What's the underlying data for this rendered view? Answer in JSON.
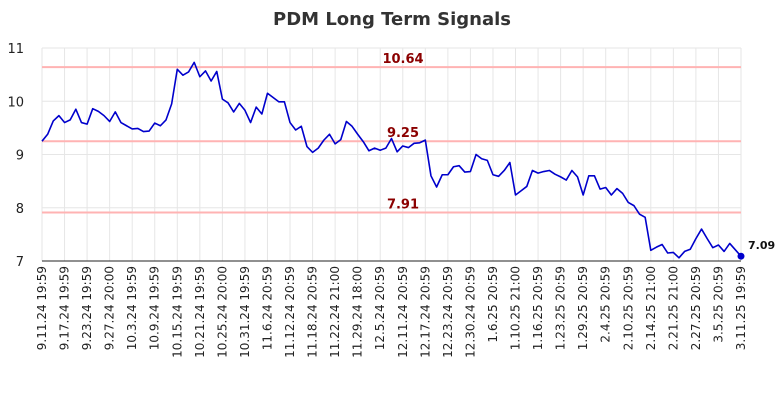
{
  "chart_data": {
    "type": "line",
    "title": "PDM Long Term Signals",
    "xlabel": "",
    "ylabel": "",
    "ylim": [
      7,
      11
    ],
    "yticks": [
      "7",
      "8",
      "9",
      "10",
      "11"
    ],
    "x_tick_labels": [
      "9.11.24 19:59",
      "9.17.24 19:59",
      "9.23.24 19:59",
      "9.27.24 20:00",
      "10.3.24 19:59",
      "10.9.24 19:59",
      "10.15.24 19:59",
      "10.21.24 19:59",
      "10.25.24 20:00",
      "10.31.24 19:59",
      "11.6.24 20:59",
      "11.12.24 20:59",
      "11.18.24 20:59",
      "11.22.24 21:00",
      "11.29.24 18:00",
      "12.5.24 20:59",
      "12.11.24 20:59",
      "12.17.24 20:59",
      "12.23.24 20:59",
      "12.30.24 20:59",
      "1.6.25 20:59",
      "1.10.25 21:00",
      "1.16.25 20:59",
      "1.23.25 20:59",
      "1.29.25 20:59",
      "2.4.25 20:59",
      "2.10.25 20:59",
      "2.14.25 21:00",
      "2.21.25 21:00",
      "2.27.25 20:59",
      "3.5.25 20:59",
      "3.11.25 19:59"
    ],
    "grid": true,
    "colors": {
      "line": "#0000cc",
      "reference": "#ffb3b3",
      "reference_label": "#8b0000"
    },
    "reference_lines": [
      {
        "value": 10.64,
        "label": "10.64"
      },
      {
        "value": 9.25,
        "label": "9.25"
      },
      {
        "value": 7.91,
        "label": "7.91"
      }
    ],
    "last_value": "7.09",
    "series": [
      {
        "values": [
          9.25,
          9.38,
          9.63,
          9.73,
          9.6,
          9.65,
          9.85,
          9.6,
          9.57,
          9.86,
          9.81,
          9.73,
          9.62,
          9.8,
          9.6,
          9.54,
          9.48,
          9.49,
          9.43,
          9.44,
          9.59,
          9.54,
          9.65,
          9.95,
          10.6,
          10.49,
          10.55,
          10.73,
          10.46,
          10.57,
          10.38,
          10.56,
          10.04,
          9.97,
          9.8,
          9.96,
          9.83,
          9.6,
          9.89,
          9.76,
          10.15,
          10.07,
          9.99,
          9.99,
          9.6,
          9.46,
          9.53,
          9.15,
          9.04,
          9.12,
          9.27,
          9.38,
          9.2,
          9.28,
          9.62,
          9.53,
          9.38,
          9.24,
          9.07,
          9.12,
          9.08,
          9.12,
          9.3,
          9.05,
          9.16,
          9.13,
          9.21,
          9.22,
          9.27,
          8.6,
          8.39,
          8.62,
          8.62,
          8.77,
          8.79,
          8.67,
          8.68,
          9.0,
          8.92,
          8.89,
          8.62,
          8.59,
          8.7,
          8.85,
          8.24,
          8.32,
          8.4,
          8.7,
          8.65,
          8.68,
          8.7,
          8.63,
          8.58,
          8.52,
          8.7,
          8.58,
          8.24,
          8.6,
          8.6,
          8.35,
          8.38,
          8.24,
          8.36,
          8.27,
          8.1,
          8.04,
          7.88,
          7.82,
          7.2,
          7.26,
          7.31,
          7.15,
          7.16,
          7.06,
          7.18,
          7.22,
          7.42,
          7.6,
          7.42,
          7.25,
          7.3,
          7.18,
          7.33,
          7.21,
          7.09
        ]
      }
    ]
  }
}
